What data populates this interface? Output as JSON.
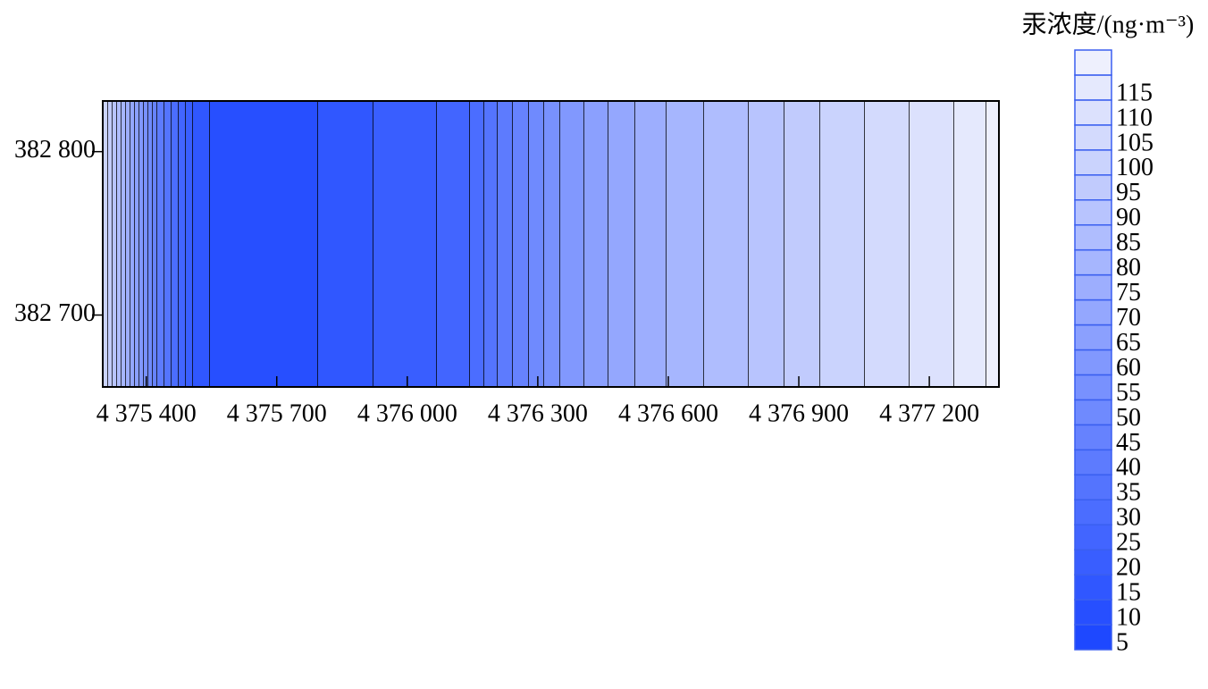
{
  "chart_data": {
    "type": "contour",
    "colorbar_title": "汞浓度/(ng·m⁻³)",
    "levels": [
      5,
      10,
      15,
      20,
      25,
      30,
      35,
      40,
      45,
      50,
      55,
      60,
      65,
      70,
      75,
      80,
      85,
      90,
      95,
      100,
      105,
      110,
      115
    ],
    "color_low": "#1e48ff",
    "color_high": "#eef0fd",
    "xlim": [
      4375300,
      4377360
    ],
    "ylim": [
      382656,
      382831
    ],
    "xticks": [
      {
        "value": 4375400,
        "label": "4 375 400"
      },
      {
        "value": 4375700,
        "label": "4 375 700"
      },
      {
        "value": 4376000,
        "label": "4 376 000"
      },
      {
        "value": 4376300,
        "label": "4 376 300"
      },
      {
        "value": 4376600,
        "label": "4 376 600"
      },
      {
        "value": 4376900,
        "label": "4 376 900"
      },
      {
        "value": 4377200,
        "label": "4 377 200"
      }
    ],
    "yticks": [
      {
        "value": 382700,
        "label": "382 700"
      },
      {
        "value": 382800,
        "label": "382 800"
      }
    ]
  }
}
